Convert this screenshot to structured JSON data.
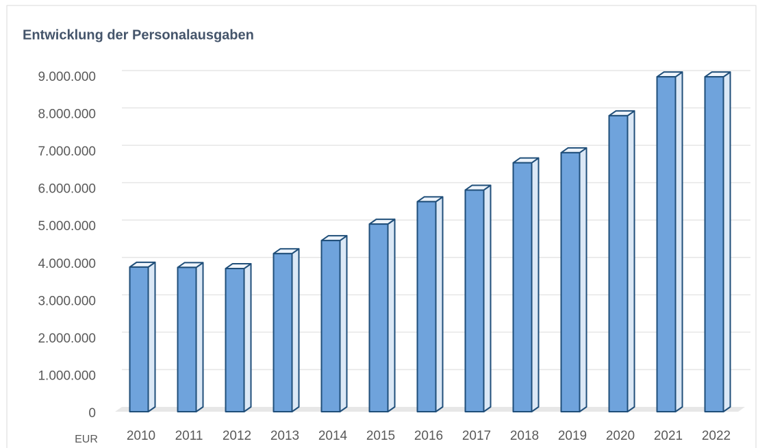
{
  "chart_data": {
    "type": "bar3d",
    "title": "Entwicklung der Personalausgaben",
    "y_unit_label": "EUR",
    "categories": [
      "2010",
      "2011",
      "2012",
      "2013",
      "2014",
      "2015",
      "2016",
      "2017",
      "2018",
      "2019",
      "2020",
      "2021",
      "2022"
    ],
    "values": [
      3870000,
      3860000,
      3830000,
      4230000,
      4580000,
      5020000,
      5620000,
      5930000,
      6660000,
      6930000,
      7920000,
      8960000,
      8960000
    ],
    "color": "#6fa3dc",
    "ylim": [
      0,
      9000000
    ],
    "yticks": [
      0,
      {
        "value": 1000000,
        "label": "1.000.000"
      },
      {
        "value": 2000000,
        "label": "2.000.000"
      },
      {
        "value": 3000000,
        "label": "3.000.000"
      },
      {
        "value": 4000000,
        "label": "4.000.000"
      },
      {
        "value": 5000000,
        "label": "5.000.000"
      },
      {
        "value": 6000000,
        "label": "6.000.000"
      },
      {
        "value": 7000000,
        "label": "7.000.000"
      },
      {
        "value": 8000000,
        "label": "8.000.000"
      },
      {
        "value": 9000000,
        "label": "9.000.000"
      }
    ],
    "grid": true
  }
}
